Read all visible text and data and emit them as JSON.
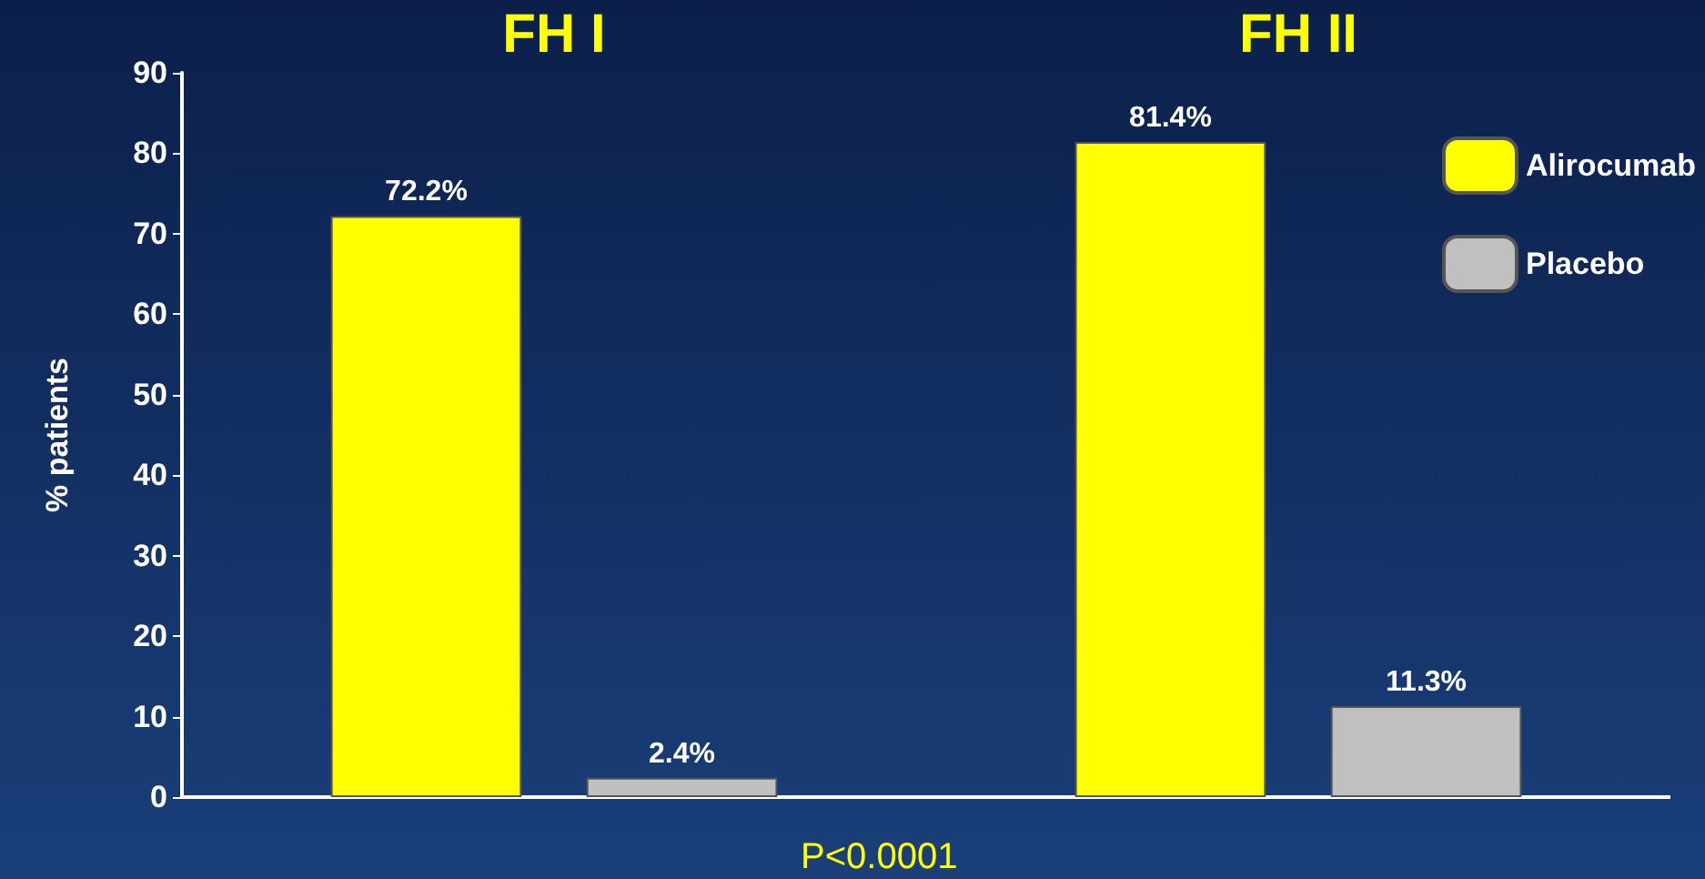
{
  "chart_data": {
    "type": "bar",
    "ylabel": "% patients",
    "categories": [
      "FH I",
      "FH II"
    ],
    "series": [
      {
        "name": "Alirocumab",
        "color": "#ffff00",
        "values": [
          72.2,
          81.4
        ],
        "value_labels": [
          "72.2%",
          "81.4%"
        ]
      },
      {
        "name": "Placebo",
        "color": "#c0c0c0",
        "values": [
          2.4,
          11.3
        ],
        "value_labels": [
          "2.4%",
          "11.3%"
        ]
      }
    ],
    "ylim": [
      0,
      90
    ],
    "yticks": [
      0,
      10,
      20,
      30,
      40,
      50,
      60,
      70,
      80,
      90
    ],
    "grid": false,
    "legend": "top right",
    "annotations": [
      "P<0.0001"
    ]
  }
}
